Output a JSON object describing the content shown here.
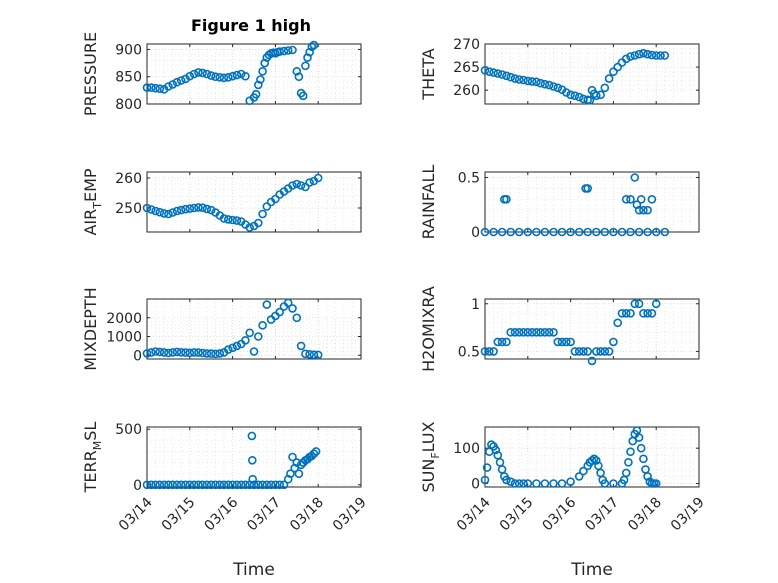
{
  "figure": {
    "title": "Figure 1 high",
    "marker_color": "#0072BD",
    "x_ticks": [
      "03/14",
      "03/15",
      "03/16",
      "03/17",
      "03/18",
      "03/19"
    ]
  },
  "chart_data": [
    {
      "type": "scatter",
      "ylabel": "PRESSURE",
      "xlabel": "",
      "xlim": [
        0,
        5
      ],
      "ylim": [
        800,
        910
      ],
      "yticks": [
        800,
        850,
        900
      ],
      "grid": true,
      "x": [
        0.0,
        0.1,
        0.2,
        0.3,
        0.4,
        0.5,
        0.6,
        0.7,
        0.8,
        0.9,
        1.0,
        1.1,
        1.2,
        1.3,
        1.4,
        1.5,
        1.6,
        1.7,
        1.8,
        1.9,
        2.0,
        2.1,
        2.2,
        2.3,
        2.4,
        2.5,
        2.55,
        2.6,
        2.65,
        2.7,
        2.75,
        2.8,
        2.85,
        2.9,
        2.95,
        3.0,
        3.05,
        3.1,
        3.2,
        3.3,
        3.4,
        3.5,
        3.55,
        3.6,
        3.65,
        3.7,
        3.75,
        3.8,
        3.85,
        3.9
      ],
      "y": [
        830,
        830,
        829,
        828,
        827,
        832,
        836,
        840,
        843,
        846,
        851,
        855,
        858,
        857,
        855,
        852,
        850,
        849,
        848,
        849,
        851,
        853,
        855,
        851,
        806,
        812,
        818,
        835,
        845,
        860,
        875,
        885,
        890,
        893,
        894,
        893,
        895,
        896,
        897,
        898,
        899,
        860,
        850,
        820,
        815,
        870,
        885,
        895,
        905,
        908
      ]
    },
    {
      "type": "scatter",
      "ylabel": "THETA",
      "xlabel": "",
      "xlim": [
        0,
        5
      ],
      "ylim": [
        257,
        270
      ],
      "yticks": [
        260,
        265,
        270
      ],
      "grid": true,
      "x": [
        0.0,
        0.1,
        0.2,
        0.3,
        0.4,
        0.5,
        0.6,
        0.7,
        0.8,
        0.9,
        1.0,
        1.1,
        1.2,
        1.3,
        1.4,
        1.5,
        1.6,
        1.7,
        1.8,
        1.9,
        2.0,
        2.1,
        2.2,
        2.3,
        2.4,
        2.45,
        2.5,
        2.55,
        2.6,
        2.7,
        2.8,
        2.9,
        3.0,
        3.1,
        3.2,
        3.3,
        3.4,
        3.5,
        3.6,
        3.7,
        3.8,
        3.9,
        4.0,
        4.1,
        4.2
      ],
      "y": [
        264.3,
        264.0,
        263.8,
        263.6,
        263.4,
        263.1,
        262.8,
        262.5,
        262.3,
        262.2,
        262.0,
        261.9,
        261.8,
        261.5,
        261.3,
        261.1,
        260.8,
        260.5,
        260.1,
        259.5,
        259.0,
        258.8,
        258.5,
        258.1,
        257.9,
        257.8,
        260.0,
        259.2,
        258.8,
        259.0,
        260.5,
        262.5,
        264.0,
        265.0,
        266.0,
        266.8,
        267.3,
        267.5,
        267.8,
        268.0,
        267.8,
        267.6,
        267.5,
        267.5,
        267.5
      ]
    },
    {
      "type": "scatter",
      "ylabel": "AIR",
      "ylabel_sub": "T",
      "ylabel_suffix": "EMP",
      "xlabel": "",
      "xlim": [
        0,
        5
      ],
      "ylim": [
        242,
        262
      ],
      "yticks": [
        250,
        260
      ],
      "grid": true,
      "x": [
        0.0,
        0.1,
        0.2,
        0.3,
        0.4,
        0.5,
        0.6,
        0.7,
        0.8,
        0.9,
        1.0,
        1.1,
        1.2,
        1.3,
        1.4,
        1.5,
        1.6,
        1.7,
        1.8,
        1.9,
        2.0,
        2.1,
        2.2,
        2.3,
        2.4,
        2.5,
        2.6,
        2.7,
        2.8,
        2.9,
        3.0,
        3.1,
        3.2,
        3.3,
        3.4,
        3.5,
        3.6,
        3.7,
        3.8,
        3.9,
        4.0
      ],
      "y": [
        250.0,
        249.5,
        249.0,
        248.6,
        248.2,
        248.0,
        248.5,
        249.0,
        249.3,
        249.6,
        249.8,
        250.0,
        250.2,
        250.1,
        249.7,
        249.3,
        248.5,
        247.5,
        246.5,
        246.2,
        246.0,
        245.8,
        245.5,
        244.5,
        243.5,
        244.0,
        245.0,
        248.0,
        250.5,
        252.0,
        253.0,
        254.5,
        255.5,
        256.5,
        257.5,
        258.0,
        257.5,
        257.0,
        258.5,
        259.0,
        260.0
      ]
    },
    {
      "type": "scatter",
      "ylabel": "RAINFALL",
      "xlabel": "",
      "xlim": [
        0,
        5
      ],
      "ylim": [
        0,
        0.55
      ],
      "yticks": [
        0,
        0.5
      ],
      "grid": true,
      "x": [
        0.0,
        0.2,
        0.4,
        0.6,
        0.8,
        1.0,
        1.2,
        1.4,
        1.6,
        1.8,
        2.0,
        2.2,
        2.4,
        2.6,
        2.8,
        3.0,
        3.2,
        3.4,
        3.6,
        3.8,
        4.0,
        4.2,
        0.45,
        0.5,
        2.35,
        2.4,
        3.3,
        3.4,
        3.5,
        3.55,
        3.6,
        3.65,
        3.7,
        3.8,
        3.9
      ],
      "y": [
        0,
        0,
        0,
        0,
        0,
        0,
        0,
        0,
        0,
        0,
        0,
        0,
        0,
        0,
        0,
        0,
        0,
        0,
        0,
        0,
        0,
        0,
        0.3,
        0.3,
        0.4,
        0.4,
        0.3,
        0.3,
        0.5,
        0.25,
        0.2,
        0.3,
        0.2,
        0.2,
        0.3
      ]
    },
    {
      "type": "scatter",
      "ylabel": "MIXDEPTH",
      "xlabel": "",
      "xlim": [
        0,
        5
      ],
      "ylim": [
        -200,
        3000
      ],
      "yticks": [
        0,
        1000,
        2000
      ],
      "grid": true,
      "x": [
        0.0,
        0.1,
        0.2,
        0.3,
        0.4,
        0.5,
        0.6,
        0.7,
        0.8,
        0.9,
        1.0,
        1.1,
        1.2,
        1.3,
        1.4,
        1.5,
        1.6,
        1.7,
        1.8,
        1.9,
        2.0,
        2.1,
        2.2,
        2.3,
        2.4,
        2.5,
        2.6,
        2.7,
        2.8,
        2.9,
        3.0,
        3.1,
        3.2,
        3.3,
        3.4,
        3.5,
        3.6,
        3.7,
        3.8,
        3.9,
        4.0
      ],
      "y": [
        100,
        150,
        200,
        180,
        150,
        120,
        150,
        180,
        160,
        140,
        130,
        150,
        140,
        120,
        100,
        90,
        80,
        100,
        150,
        300,
        400,
        500,
        600,
        800,
        1200,
        200,
        1000,
        1600,
        2700,
        1900,
        2100,
        2300,
        2600,
        2800,
        2500,
        2000,
        500,
        80,
        50,
        30,
        20
      ]
    },
    {
      "type": "scatter",
      "ylabel": "H2OMIXRA",
      "xlabel": "",
      "xlim": [
        0,
        5
      ],
      "ylim": [
        0.42,
        1.05
      ],
      "yticks": [
        0.5,
        1
      ],
      "grid": true,
      "x": [
        0.0,
        0.1,
        0.2,
        0.3,
        0.4,
        0.5,
        0.6,
        0.7,
        0.8,
        0.9,
        1.0,
        1.1,
        1.2,
        1.3,
        1.4,
        1.5,
        1.6,
        1.7,
        1.8,
        1.9,
        2.0,
        2.1,
        2.2,
        2.3,
        2.4,
        2.5,
        2.6,
        2.7,
        2.8,
        2.9,
        3.0,
        3.1,
        3.2,
        3.3,
        3.4,
        3.5,
        3.6,
        3.7,
        3.8,
        3.9,
        4.0
      ],
      "y": [
        0.5,
        0.5,
        0.5,
        0.6,
        0.6,
        0.6,
        0.7,
        0.7,
        0.7,
        0.7,
        0.7,
        0.7,
        0.7,
        0.7,
        0.7,
        0.7,
        0.7,
        0.6,
        0.6,
        0.6,
        0.6,
        0.5,
        0.5,
        0.5,
        0.5,
        0.4,
        0.5,
        0.5,
        0.5,
        0.5,
        0.6,
        0.8,
        0.9,
        0.9,
        0.9,
        1.0,
        1.0,
        0.9,
        0.9,
        0.9,
        1.0
      ]
    },
    {
      "type": "scatter",
      "ylabel": "TERR",
      "ylabel_sub": "M",
      "ylabel_suffix": "SL",
      "xlabel": "Time",
      "xlim": [
        0,
        5
      ],
      "ylim": [
        -20,
        520
      ],
      "yticks": [
        0,
        500
      ],
      "grid": true,
      "x": [
        0.0,
        0.1,
        0.2,
        0.3,
        0.4,
        0.5,
        0.6,
        0.7,
        0.8,
        0.9,
        1.0,
        1.1,
        1.2,
        1.3,
        1.4,
        1.5,
        1.6,
        1.7,
        1.8,
        1.9,
        2.0,
        2.1,
        2.2,
        2.3,
        2.4,
        2.5,
        2.45,
        2.46,
        2.47,
        2.6,
        2.7,
        2.8,
        2.9,
        3.0,
        3.1,
        3.2,
        3.3,
        3.35,
        3.4,
        3.45,
        3.5,
        3.55,
        3.6,
        3.65,
        3.7,
        3.75,
        3.8,
        3.85,
        3.9,
        3.95
      ],
      "y": [
        0,
        0,
        0,
        0,
        0,
        0,
        0,
        0,
        0,
        0,
        0,
        0,
        0,
        0,
        0,
        0,
        0,
        0,
        0,
        0,
        0,
        0,
        0,
        0,
        0,
        0,
        440,
        220,
        50,
        0,
        0,
        0,
        0,
        0,
        0,
        0,
        50,
        100,
        250,
        150,
        200,
        100,
        180,
        200,
        220,
        230,
        250,
        260,
        280,
        300
      ]
    },
    {
      "type": "scatter",
      "ylabel": "SUN",
      "ylabel_sub": "F",
      "ylabel_suffix": "LUX",
      "xlabel": "Time",
      "xlim": [
        0,
        5
      ],
      "ylim": [
        -10,
        160
      ],
      "yticks": [
        0,
        100
      ],
      "grid": true,
      "x": [
        0.0,
        0.05,
        0.1,
        0.15,
        0.2,
        0.25,
        0.3,
        0.35,
        0.4,
        0.45,
        0.5,
        0.6,
        0.7,
        0.8,
        0.9,
        1.0,
        1.2,
        1.4,
        1.6,
        1.8,
        2.0,
        2.2,
        2.3,
        2.4,
        2.45,
        2.5,
        2.55,
        2.6,
        2.65,
        2.7,
        2.75,
        2.8,
        3.0,
        3.2,
        3.25,
        3.3,
        3.35,
        3.4,
        3.45,
        3.5,
        3.55,
        3.6,
        3.65,
        3.7,
        3.75,
        3.8,
        3.85,
        3.9,
        3.95,
        4.0
      ],
      "y": [
        10,
        45,
        90,
        110,
        105,
        95,
        80,
        60,
        40,
        20,
        10,
        5,
        0,
        0,
        0,
        0,
        0,
        0,
        0,
        0,
        5,
        20,
        35,
        50,
        60,
        65,
        70,
        65,
        50,
        30,
        10,
        0,
        0,
        0,
        10,
        30,
        60,
        90,
        120,
        140,
        150,
        130,
        100,
        70,
        40,
        20,
        5,
        0,
        0,
        0
      ]
    }
  ]
}
